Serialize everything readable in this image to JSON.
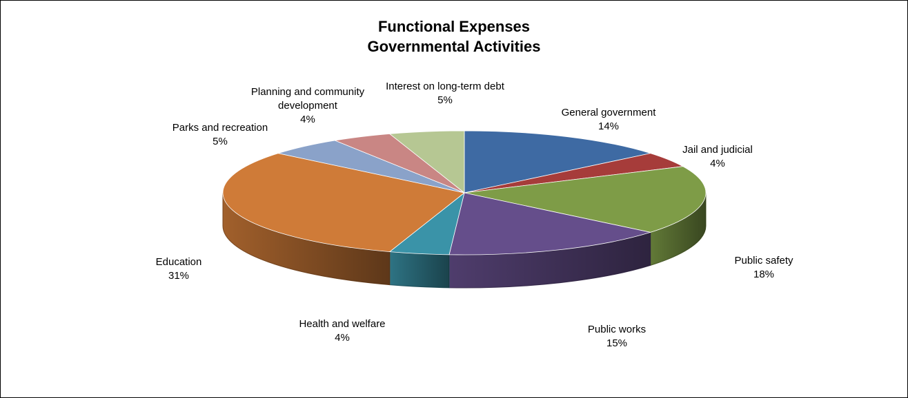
{
  "chart_data": {
    "type": "pie",
    "title_line1": "Functional Expenses",
    "title_line2": "Governmental Activities",
    "slices": [
      {
        "label": "General government",
        "lines": [
          "General government"
        ],
        "pct_label": "14%",
        "value": 14,
        "color": "#3e6aa3"
      },
      {
        "label": "Jail and judicial",
        "lines": [
          "Jail and judicial"
        ],
        "pct_label": "4%",
        "value": 4,
        "color": "#a63c3a"
      },
      {
        "label": "Public safety",
        "lines": [
          "Public safety"
        ],
        "pct_label": "18%",
        "value": 18,
        "color": "#7e9c47"
      },
      {
        "label": "Public works",
        "lines": [
          "Public works"
        ],
        "pct_label": "15%",
        "value": 15,
        "color": "#654e8b"
      },
      {
        "label": "Health and welfare",
        "lines": [
          "Health and welfare"
        ],
        "pct_label": "4%",
        "value": 4,
        "color": "#3a93a8"
      },
      {
        "label": "Education",
        "lines": [
          "Education"
        ],
        "pct_label": "31%",
        "value": 31,
        "color": "#cf7b38"
      },
      {
        "label": "Parks and recreation",
        "lines": [
          "Parks and recreation"
        ],
        "pct_label": "5%",
        "value": 5,
        "color": "#8aa2c9"
      },
      {
        "label": "Planning and community development",
        "lines": [
          "Planning and community",
          "development"
        ],
        "pct_label": "4%",
        "value": 4,
        "color": "#c98684"
      },
      {
        "label": "Interest on long-term debt",
        "lines": [
          "Interest on long-term debt"
        ],
        "pct_label": "5%",
        "value": 5,
        "color": "#b6c793"
      }
    ]
  }
}
